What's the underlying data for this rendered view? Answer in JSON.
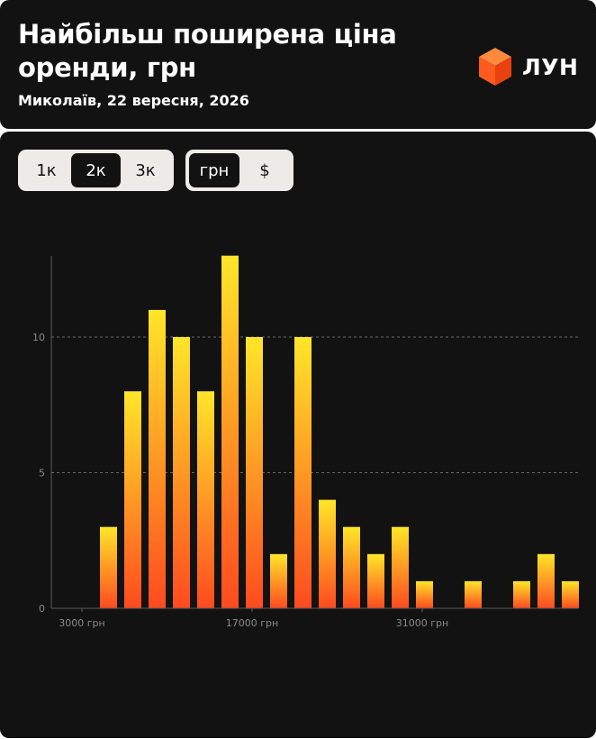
{
  "header": {
    "title": "Найбільш поширена ціна оренди, грн",
    "subtitle": "Миколаїв, 22 вересня, 2026",
    "logo_text": "ЛУН",
    "logo_icon": "orange-cube-icon"
  },
  "controls": {
    "step_options": [
      "1к",
      "2к",
      "3к"
    ],
    "step_selected": "2к",
    "currency_options": [
      "грн",
      "$"
    ],
    "currency_selected": "грн"
  },
  "colors": {
    "background": "#131212",
    "bar_top": "#ffe629",
    "bar_bottom": "#ff4a1f",
    "toggle_bg": "#ecebe8"
  },
  "chart_data": {
    "type": "bar",
    "title": "",
    "xlabel": "",
    "ylabel": "",
    "x_unit": "грн",
    "bin_width": 2000,
    "x": [
      3000,
      5000,
      7000,
      9000,
      11000,
      13000,
      15000,
      17000,
      19000,
      21000,
      23000,
      25000,
      27000,
      29000,
      31000,
      33000,
      35000,
      37000,
      39000,
      41000,
      43000,
      45000
    ],
    "values": [
      0,
      3,
      8,
      11,
      10,
      8,
      13,
      10,
      2,
      10,
      4,
      3,
      2,
      3,
      1,
      0,
      1,
      0,
      1,
      2,
      1,
      0
    ],
    "x_ticks": [
      "3000 грн",
      "17000 грн",
      "31000 грн"
    ],
    "y_ticks": [
      0,
      5,
      10
    ],
    "ylim": [
      0,
      13
    ],
    "grid": "horizontal dashed at 5 and 10",
    "legend": "none"
  }
}
